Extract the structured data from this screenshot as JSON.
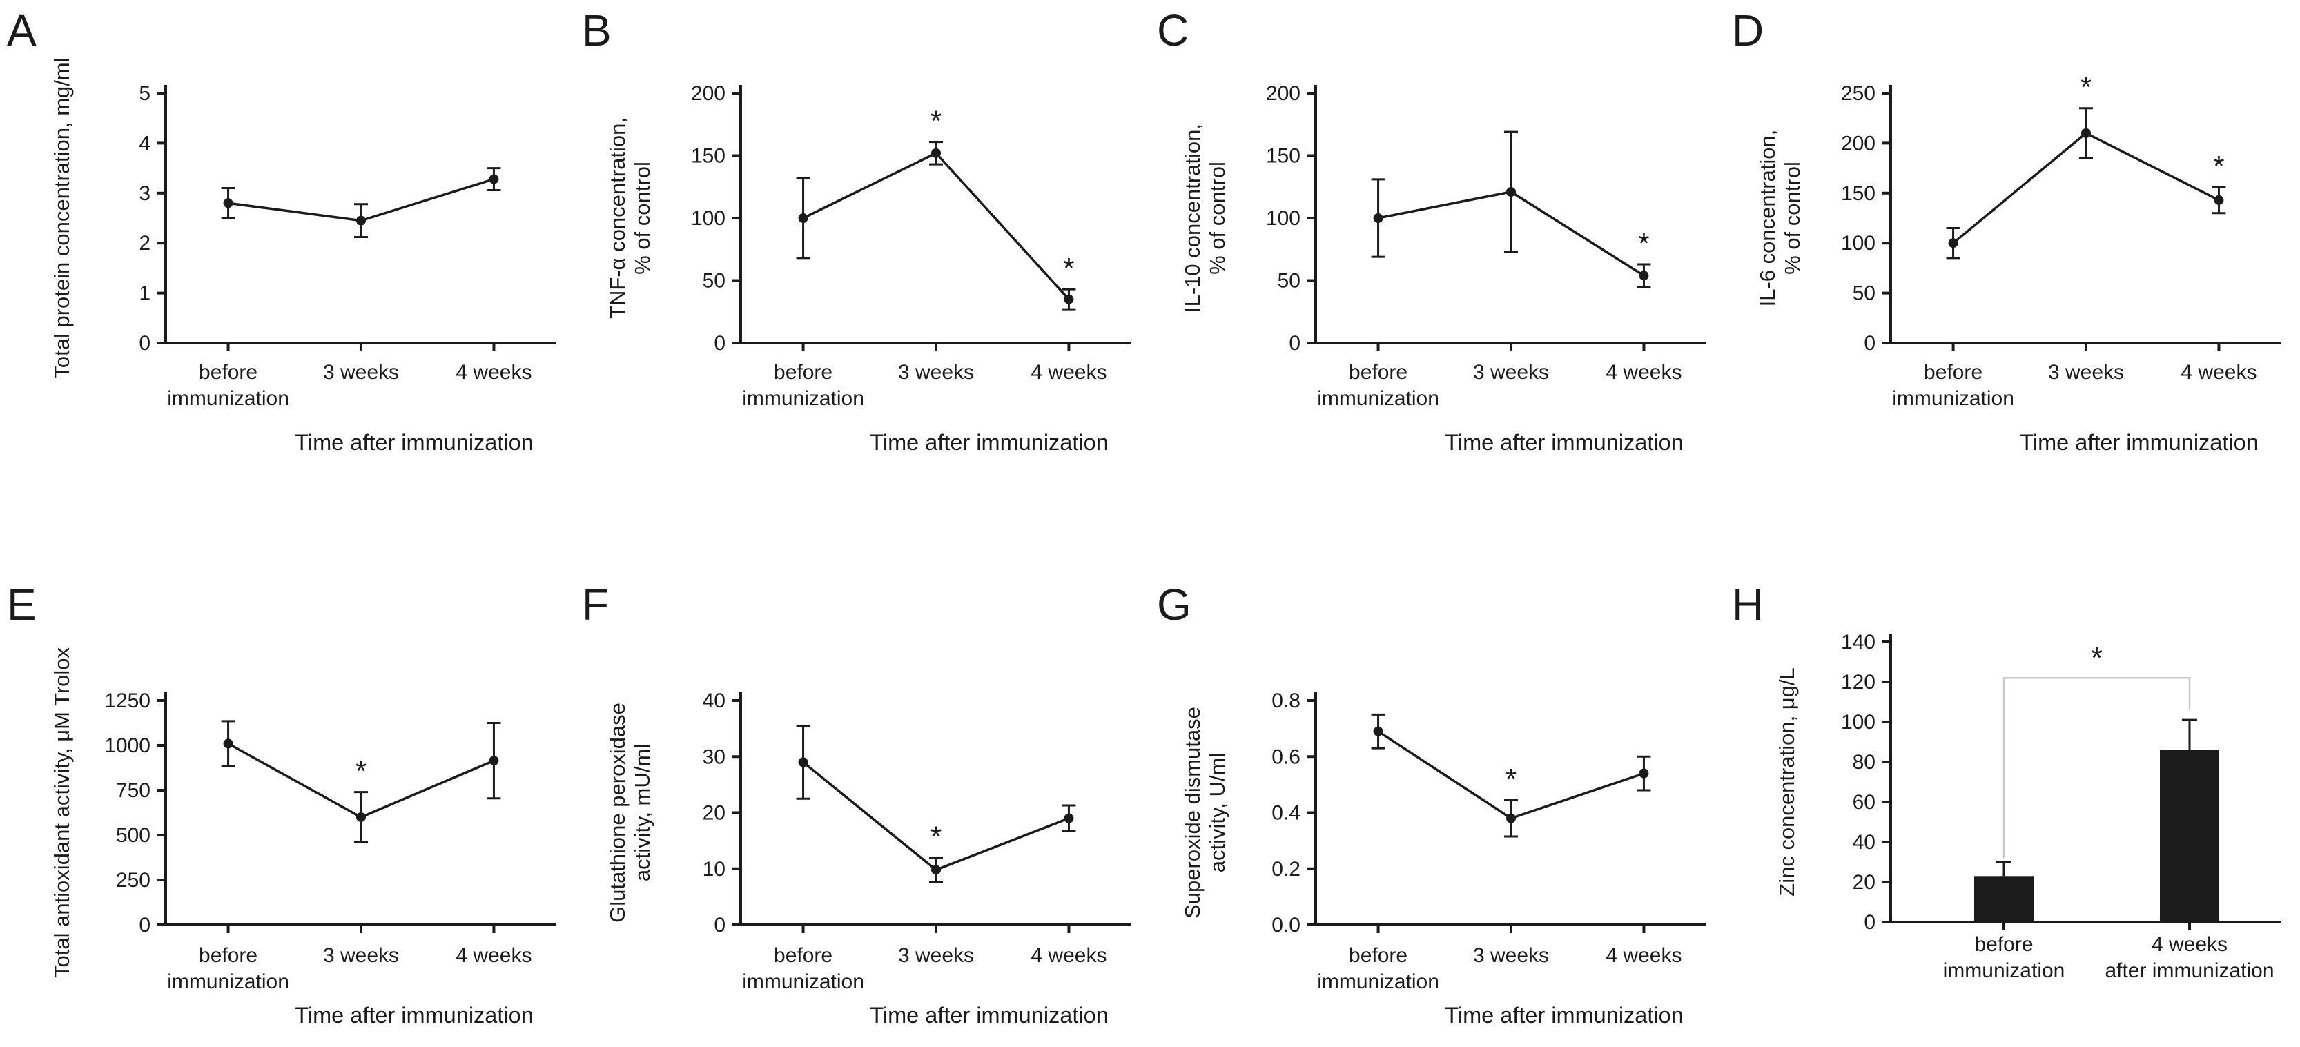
{
  "figure": {
    "x_axis_title": "Time after immunization",
    "significance_marker": "*",
    "line_categories": [
      "before\nimmunization",
      "3 weeks",
      "4 weeks"
    ]
  },
  "colors": {
    "ink": "#1b1b1b",
    "bracket": "#c8c8c8",
    "background": "#ffffff"
  },
  "chart_data": [
    {
      "panel": "A",
      "type": "line",
      "ylabel_lines": [
        "Total protein concentration, mg/ml"
      ],
      "categories": [
        "before\nimmunization",
        "3 weeks",
        "4 weeks"
      ],
      "values": [
        2.8,
        2.45,
        3.28
      ],
      "errors": [
        0.3,
        0.33,
        0.22
      ],
      "sig": [
        false,
        false,
        false
      ],
      "ylim": [
        0,
        5
      ],
      "yticks": [
        0,
        1,
        2,
        3,
        4,
        5
      ],
      "ytick_labels": [
        "0",
        "1",
        "2",
        "3",
        "4",
        "5"
      ],
      "xlabel": "Time after immunization"
    },
    {
      "panel": "B",
      "type": "line",
      "ylabel_lines": [
        "TNF-α concentration,",
        "% of control"
      ],
      "categories": [
        "before\nimmunization",
        "3 weeks",
        "4 weeks"
      ],
      "values": [
        100,
        152,
        35
      ],
      "errors": [
        32,
        9,
        8
      ],
      "sig": [
        false,
        true,
        true
      ],
      "ylim": [
        0,
        200
      ],
      "yticks": [
        0,
        50,
        100,
        150,
        200
      ],
      "ytick_labels": [
        "0",
        "50",
        "100",
        "150",
        "200"
      ],
      "xlabel": "Time after immunization"
    },
    {
      "panel": "C",
      "type": "line",
      "ylabel_lines": [
        "IL-10 concentration,",
        "% of control"
      ],
      "categories": [
        "before\nimmunization",
        "3 weeks",
        "4 weeks"
      ],
      "values": [
        100,
        121,
        54
      ],
      "errors": [
        31,
        48,
        9
      ],
      "sig": [
        false,
        false,
        true
      ],
      "ylim": [
        0,
        200
      ],
      "yticks": [
        0,
        50,
        100,
        150,
        200
      ],
      "ytick_labels": [
        "0",
        "50",
        "100",
        "150",
        "200"
      ],
      "xlabel": "Time after immunization"
    },
    {
      "panel": "D",
      "type": "line",
      "ylabel_lines": [
        "IL-6 concentration,",
        "% of control"
      ],
      "categories": [
        "before\nimmunization",
        "3 weeks",
        "4 weeks"
      ],
      "values": [
        100,
        210,
        143
      ],
      "errors": [
        15,
        25,
        13
      ],
      "sig": [
        false,
        true,
        true
      ],
      "ylim": [
        0,
        250
      ],
      "yticks": [
        0,
        50,
        100,
        150,
        200,
        250
      ],
      "ytick_labels": [
        "0",
        "50",
        "100",
        "150",
        "200",
        "250"
      ],
      "xlabel": "Time after immunization"
    },
    {
      "panel": "E",
      "type": "line",
      "ylabel_lines": [
        "Total antioxidant activity, μM Trolox"
      ],
      "categories": [
        "before\nimmunization",
        "3 weeks",
        "4 weeks"
      ],
      "values": [
        1010,
        600,
        915
      ],
      "errors": [
        125,
        140,
        210
      ],
      "sig": [
        false,
        true,
        false
      ],
      "ylim": [
        0,
        1250
      ],
      "yticks": [
        0,
        250,
        500,
        750,
        1000,
        1250
      ],
      "ytick_labels": [
        "0",
        "250",
        "500",
        "750",
        "1000",
        "1250"
      ],
      "xlabel": "Time after immunization"
    },
    {
      "panel": "F",
      "type": "line",
      "ylabel_lines": [
        "Glutathione peroxidase",
        "activity, mU/ml"
      ],
      "categories": [
        "before\nimmunization",
        "3 weeks",
        "4 weeks"
      ],
      "values": [
        29,
        9.8,
        19
      ],
      "errors": [
        6.5,
        2.2,
        2.3
      ],
      "sig": [
        false,
        true,
        false
      ],
      "ylim": [
        0,
        40
      ],
      "yticks": [
        0,
        10,
        20,
        30,
        40
      ],
      "ytick_labels": [
        "0",
        "10",
        "20",
        "30",
        "40"
      ],
      "xlabel": "Time after immunization"
    },
    {
      "panel": "G",
      "type": "line",
      "ylabel_lines": [
        "Superoxide dismutase",
        "activity, U/ml"
      ],
      "categories": [
        "before\nimmunization",
        "3 weeks",
        "4 weeks"
      ],
      "values": [
        0.69,
        0.38,
        0.54
      ],
      "errors": [
        0.06,
        0.065,
        0.06
      ],
      "sig": [
        false,
        true,
        false
      ],
      "ylim": [
        0,
        0.8
      ],
      "yticks": [
        0,
        0.2,
        0.4,
        0.6,
        0.8
      ],
      "ytick_labels": [
        "0.0",
        "0.2",
        "0.4",
        "0.6",
        "0.8"
      ],
      "xlabel": "Time after immunization"
    },
    {
      "panel": "H",
      "type": "bar",
      "ylabel_lines": [
        "Zinc concentration, μg/L"
      ],
      "categories": [
        "before\nimmunization",
        "4 weeks\nafter immunization"
      ],
      "values": [
        23,
        86
      ],
      "errors": [
        7,
        15
      ],
      "sig": [
        false,
        false
      ],
      "ylim": [
        0,
        140
      ],
      "yticks": [
        0,
        20,
        40,
        60,
        80,
        100,
        120,
        140
      ],
      "ytick_labels": [
        "0",
        "20",
        "40",
        "60",
        "80",
        "100",
        "120",
        "140"
      ],
      "xlabel": null,
      "bracket": {
        "y": 122,
        "left_bottom": 32,
        "right_bottom": 106,
        "label": "*"
      }
    }
  ]
}
